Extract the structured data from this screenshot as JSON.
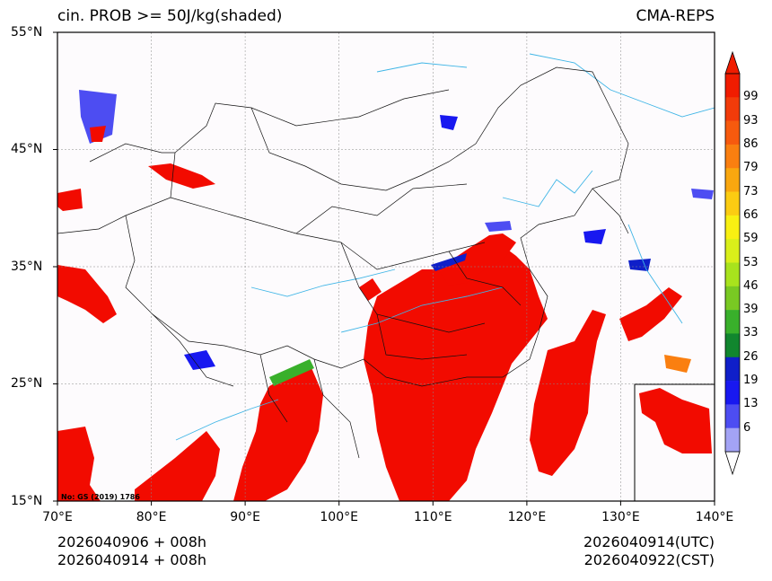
{
  "header": {
    "title_left": "cin. PROB >= 50J/kg(shaded)",
    "title_right": "CMA-REPS"
  },
  "footer": {
    "init_line1": "2026040906  +  008h",
    "init_line2": "2026040914  +  008h",
    "valid_utc": "2026040914(UTC)",
    "valid_cst": "2026040922(CST)"
  },
  "map": {
    "stamp": "No: GS (2019) 1786",
    "lon_labels": [
      "70°E",
      "80°E",
      "90°E",
      "100°E",
      "110°E",
      "120°E",
      "130°E",
      "140°E"
    ],
    "lat_labels": [
      "55°N",
      "45°N",
      "35°N",
      "25°N",
      "15°N"
    ],
    "colors": {
      "background": "#fdfbfd",
      "rivers": "#3fb5e6",
      "borders": "#111111",
      "high_prob": "#f20b00"
    }
  },
  "colorbar": {
    "labels": [
      "99",
      "93",
      "86",
      "79",
      "73",
      "66",
      "59",
      "53",
      "46",
      "39",
      "33",
      "26",
      "19",
      "13",
      "6"
    ],
    "colors": [
      "#f01c00",
      "#f23b0a",
      "#f75a0e",
      "#fa7f10",
      "#f9a70f",
      "#fbcc12",
      "#f8f012",
      "#d9ef1a",
      "#a8e31d",
      "#79c923",
      "#39b02b",
      "#11862e",
      "#0f1fc9",
      "#1818f0",
      "#4d4df2",
      "#a3a3f5"
    ]
  }
}
